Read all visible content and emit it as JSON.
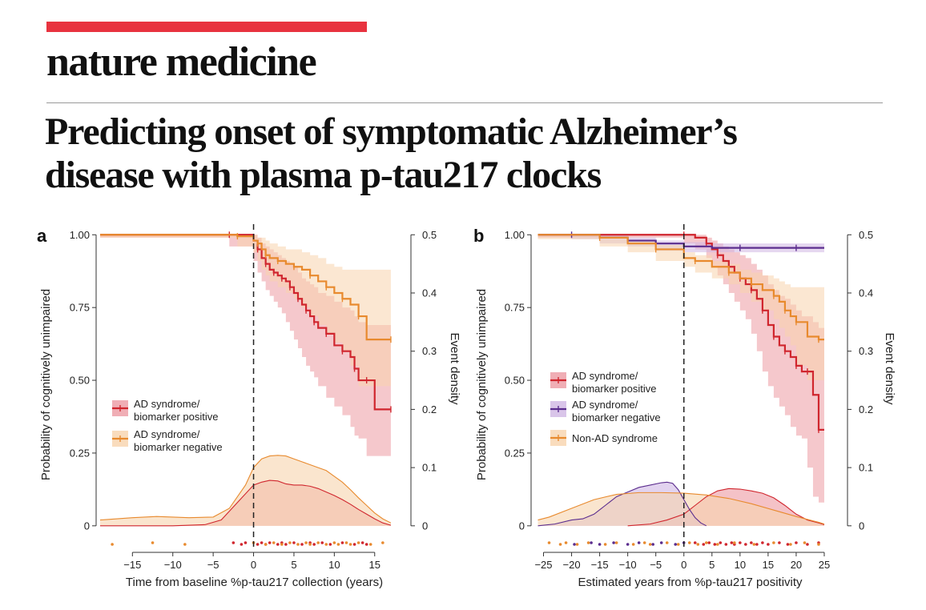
{
  "header": {
    "journal": "nature medicine",
    "title_line1": "Predicting onset of symptomatic Alzheimer’s",
    "title_line2": "disease with plasma p-tau217 clocks",
    "brand_color": "#e8333f"
  },
  "chart_data": [
    {
      "panel": "a",
      "type": "line",
      "xlabel": "Time from baseline %p-tau217 collection (years)",
      "ylabel": "Probability of cognitively unimpaired",
      "y2label": "Event density",
      "xlim": [
        -19,
        18
      ],
      "ylim": [
        -0.05,
        1.02
      ],
      "y2lim": [
        -0.025,
        0.51
      ],
      "xticks": [
        -15,
        -10,
        -5,
        0,
        5,
        10,
        15
      ],
      "yticks": [
        1.0,
        0.75,
        0.5,
        0.25,
        0
      ],
      "ytick_labels": [
        "1.00",
        "0.75",
        "0.50",
        "0.25",
        "0"
      ],
      "y2ticks": [
        0.5,
        0.4,
        0.3,
        0.2,
        0.1,
        0
      ],
      "vline_x": 0,
      "legend_position": "center-left",
      "series": [
        {
          "name": "AD syndrome/ biomarker positive",
          "color": "#d0262e",
          "fill": "#ec9aa2",
          "x": [
            -19,
            -3,
            0,
            0.5,
            1,
            1.5,
            2,
            2.5,
            3,
            3.5,
            4,
            4.5,
            5,
            5.5,
            6,
            6.5,
            7,
            7.5,
            8,
            9,
            10,
            11,
            12,
            12.5,
            13,
            14,
            15,
            17
          ],
          "y": [
            1.0,
            1.0,
            0.98,
            0.95,
            0.92,
            0.9,
            0.88,
            0.87,
            0.86,
            0.85,
            0.84,
            0.82,
            0.8,
            0.78,
            0.76,
            0.74,
            0.72,
            0.7,
            0.68,
            0.66,
            0.62,
            0.6,
            0.58,
            0.54,
            0.5,
            0.5,
            0.4,
            0.4
          ],
          "lo": [
            1.0,
            0.99,
            0.96,
            0.91,
            0.87,
            0.84,
            0.81,
            0.79,
            0.77,
            0.75,
            0.73,
            0.7,
            0.67,
            0.64,
            0.61,
            0.58,
            0.55,
            0.53,
            0.51,
            0.48,
            0.44,
            0.41,
            0.38,
            0.34,
            0.31,
            0.3,
            0.24,
            0.24
          ],
          "hi": [
            1.0,
            1.0,
            1.0,
            0.99,
            0.97,
            0.96,
            0.95,
            0.94,
            0.93,
            0.92,
            0.91,
            0.9,
            0.89,
            0.87,
            0.85,
            0.84,
            0.83,
            0.82,
            0.8,
            0.79,
            0.77,
            0.75,
            0.74,
            0.72,
            0.7,
            0.69,
            0.69,
            0.69
          ],
          "density_x": [
            -19,
            -10,
            -6,
            -4,
            -2,
            0,
            1,
            2,
            3,
            4,
            5,
            6,
            7,
            8,
            9,
            10,
            11,
            12,
            13,
            14,
            15,
            16,
            17
          ],
          "density_y": [
            0.0,
            0.0,
            0.002,
            0.01,
            0.04,
            0.07,
            0.075,
            0.078,
            0.077,
            0.072,
            0.07,
            0.07,
            0.068,
            0.064,
            0.058,
            0.052,
            0.045,
            0.037,
            0.028,
            0.02,
            0.012,
            0.005,
            0.001
          ],
          "events_x": [
            -2.5,
            -1.5,
            -1,
            0.5,
            1,
            1.5,
            2,
            3,
            3.5,
            4,
            5,
            6,
            7,
            7.5,
            8.5,
            9.5,
            11,
            12.5,
            13.5,
            14
          ]
        },
        {
          "name": "AD syndrome/ biomarker negative",
          "color": "#e88a2e",
          "fill": "#f7d3ad",
          "x": [
            -19,
            -2,
            0,
            0.5,
            1,
            1.5,
            2,
            3,
            4,
            5,
            6,
            7,
            8,
            9,
            10,
            11,
            12,
            13,
            14,
            17
          ],
          "y": [
            1.0,
            0.995,
            0.98,
            0.97,
            0.95,
            0.93,
            0.92,
            0.91,
            0.9,
            0.89,
            0.88,
            0.86,
            0.84,
            0.82,
            0.8,
            0.78,
            0.76,
            0.72,
            0.64,
            0.64
          ],
          "lo": [
            1.0,
            0.99,
            0.96,
            0.94,
            0.91,
            0.88,
            0.86,
            0.84,
            0.82,
            0.8,
            0.78,
            0.75,
            0.72,
            0.69,
            0.66,
            0.63,
            0.6,
            0.55,
            0.48,
            0.48
          ],
          "hi": [
            1.0,
            1.0,
            1.0,
            0.99,
            0.99,
            0.98,
            0.97,
            0.96,
            0.95,
            0.95,
            0.94,
            0.93,
            0.92,
            0.9,
            0.89,
            0.88,
            0.88,
            0.88,
            0.88,
            0.88
          ],
          "density_x": [
            -19,
            -15,
            -12,
            -8,
            -5,
            -3,
            -1,
            0,
            1,
            2,
            3,
            4,
            5,
            6,
            7,
            8,
            9,
            10,
            11,
            12,
            13,
            14,
            15,
            16,
            17
          ],
          "density_y": [
            0.01,
            0.014,
            0.016,
            0.014,
            0.015,
            0.03,
            0.07,
            0.1,
            0.115,
            0.12,
            0.121,
            0.12,
            0.115,
            0.11,
            0.105,
            0.1,
            0.095,
            0.085,
            0.075,
            0.062,
            0.048,
            0.035,
            0.022,
            0.012,
            0.005
          ],
          "events_x": [
            -17.5,
            -12.5,
            -8.5,
            0,
            1.5,
            2.5,
            3.5,
            4.5,
            5.5,
            6.5,
            7,
            8,
            9,
            10,
            10.5,
            11.5,
            12,
            13,
            14.5,
            16
          ]
        }
      ]
    },
    {
      "panel": "b",
      "type": "line",
      "xlabel": "Estimated years from %p-tau217 positivity",
      "ylabel": "Probability of cognitively unimpaired",
      "y2label": "Event density",
      "xlim": [
        -26.5,
        27
      ],
      "ylim": [
        -0.05,
        1.02
      ],
      "y2lim": [
        -0.025,
        0.51
      ],
      "xticks": [
        -25,
        -20,
        -15,
        -10,
        -5,
        0,
        5,
        10,
        15,
        20,
        25
      ],
      "yticks": [
        1.0,
        0.75,
        0.5,
        0.25,
        0
      ],
      "ytick_labels": [
        "1.00",
        "0.75",
        "0.50",
        "0.25",
        "0"
      ],
      "y2ticks": [
        0.5,
        0.4,
        0.3,
        0.2,
        0.1,
        0
      ],
      "vline_x": 0,
      "legend_position": "center-left",
      "series": [
        {
          "name": "AD syndrome/ biomarker positive",
          "color": "#d0262e",
          "fill": "#ec9aa2",
          "x": [
            -26,
            0,
            2,
            4,
            5,
            6,
            7,
            8,
            9,
            10,
            11,
            12,
            13,
            14,
            15,
            16,
            17,
            18,
            19,
            20,
            21,
            22,
            23,
            24,
            25
          ],
          "y": [
            1.0,
            1.0,
            0.99,
            0.97,
            0.95,
            0.93,
            0.91,
            0.89,
            0.87,
            0.85,
            0.83,
            0.81,
            0.78,
            0.74,
            0.69,
            0.65,
            0.62,
            0.6,
            0.58,
            0.55,
            0.53,
            0.53,
            0.45,
            0.33,
            0.33
          ],
          "lo": [
            1.0,
            0.99,
            0.97,
            0.95,
            0.92,
            0.89,
            0.86,
            0.83,
            0.8,
            0.77,
            0.74,
            0.71,
            0.66,
            0.6,
            0.53,
            0.48,
            0.44,
            0.41,
            0.38,
            0.34,
            0.31,
            0.3,
            0.2,
            0.1,
            0.08
          ],
          "hi": [
            1.0,
            1.0,
            1.0,
            0.99,
            0.98,
            0.97,
            0.96,
            0.95,
            0.94,
            0.93,
            0.92,
            0.9,
            0.88,
            0.86,
            0.83,
            0.81,
            0.79,
            0.78,
            0.76,
            0.74,
            0.72,
            0.72,
            0.7,
            0.68,
            0.67
          ],
          "density_x": [
            -10,
            -6,
            -3,
            0,
            2,
            4,
            6,
            8,
            10,
            12,
            14,
            16,
            18,
            20,
            22,
            24,
            25
          ],
          "density_y": [
            0.0,
            0.003,
            0.01,
            0.02,
            0.035,
            0.05,
            0.06,
            0.064,
            0.063,
            0.06,
            0.056,
            0.048,
            0.035,
            0.02,
            0.01,
            0.005,
            0.002
          ],
          "events_x": [
            2,
            3.5,
            4.5,
            5.5,
            6.5,
            7.5,
            8.5,
            9,
            10,
            11,
            12,
            13,
            14,
            15,
            17,
            18.5,
            20,
            22,
            24
          ]
        },
        {
          "name": "AD syndrome/ biomarker negative",
          "color": "#5b2d8e",
          "fill": "#cfb6e4",
          "x": [
            -26,
            -20,
            -15,
            -10,
            -5,
            0,
            5,
            10,
            15,
            20,
            25
          ],
          "y": [
            1.0,
            1.0,
            0.99,
            0.98,
            0.97,
            0.96,
            0.955,
            0.955,
            0.955,
            0.955,
            0.955
          ],
          "lo": [
            1.0,
            0.995,
            0.985,
            0.97,
            0.96,
            0.945,
            0.94,
            0.94,
            0.94,
            0.94,
            0.94
          ],
          "hi": [
            1.0,
            1.0,
            1.0,
            0.99,
            0.98,
            0.975,
            0.97,
            0.97,
            0.97,
            0.97,
            0.97
          ],
          "density_x": [
            -26,
            -23,
            -20,
            -18,
            -16,
            -14,
            -12,
            -10,
            -8,
            -6,
            -4,
            -3,
            -2,
            -1,
            0,
            1,
            2,
            3,
            4
          ],
          "density_y": [
            0.0,
            0.003,
            0.01,
            0.012,
            0.02,
            0.035,
            0.05,
            0.058,
            0.066,
            0.07,
            0.074,
            0.075,
            0.073,
            0.062,
            0.045,
            0.028,
            0.014,
            0.005,
            0.0
          ],
          "events_x": [
            -19.5,
            -16.5,
            -15,
            -12.5,
            -10,
            -8,
            -5.5,
            -4,
            -1.5,
            0
          ]
        },
        {
          "name": "Non-AD syndrome",
          "color": "#e88a2e",
          "fill": "#f7d3ad",
          "x": [
            -26,
            -15,
            -10,
            -5,
            0,
            2,
            5,
            8,
            10,
            12,
            14,
            16,
            17,
            18,
            19,
            20,
            22,
            24,
            25
          ],
          "y": [
            1.0,
            0.99,
            0.97,
            0.95,
            0.92,
            0.91,
            0.89,
            0.87,
            0.85,
            0.83,
            0.81,
            0.79,
            0.77,
            0.74,
            0.72,
            0.7,
            0.65,
            0.64,
            0.64
          ],
          "lo": [
            1.0,
            0.985,
            0.96,
            0.94,
            0.91,
            0.89,
            0.87,
            0.85,
            0.83,
            0.8,
            0.77,
            0.74,
            0.71,
            0.68,
            0.65,
            0.62,
            0.55,
            0.5,
            0.5
          ],
          "hi": [
            1.0,
            0.995,
            0.98,
            0.965,
            0.94,
            0.93,
            0.91,
            0.9,
            0.88,
            0.87,
            0.86,
            0.85,
            0.84,
            0.83,
            0.82,
            0.82,
            0.82,
            0.82,
            0.82
          ],
          "density_x": [
            -26,
            -24,
            -20,
            -16,
            -12,
            -8,
            -4,
            0,
            4,
            8,
            12,
            16,
            20,
            24,
            25
          ],
          "density_y": [
            0.01,
            0.015,
            0.03,
            0.045,
            0.054,
            0.057,
            0.057,
            0.056,
            0.053,
            0.047,
            0.038,
            0.027,
            0.016,
            0.006,
            0.003
          ],
          "events_x": [
            -24,
            -22,
            -21,
            -19,
            -17,
            -14,
            -12,
            -9,
            -7,
            -6,
            -3,
            -1,
            1,
            2.5,
            4,
            6,
            9,
            12.5,
            16,
            19,
            21.5,
            24
          ]
        }
      ]
    }
  ]
}
